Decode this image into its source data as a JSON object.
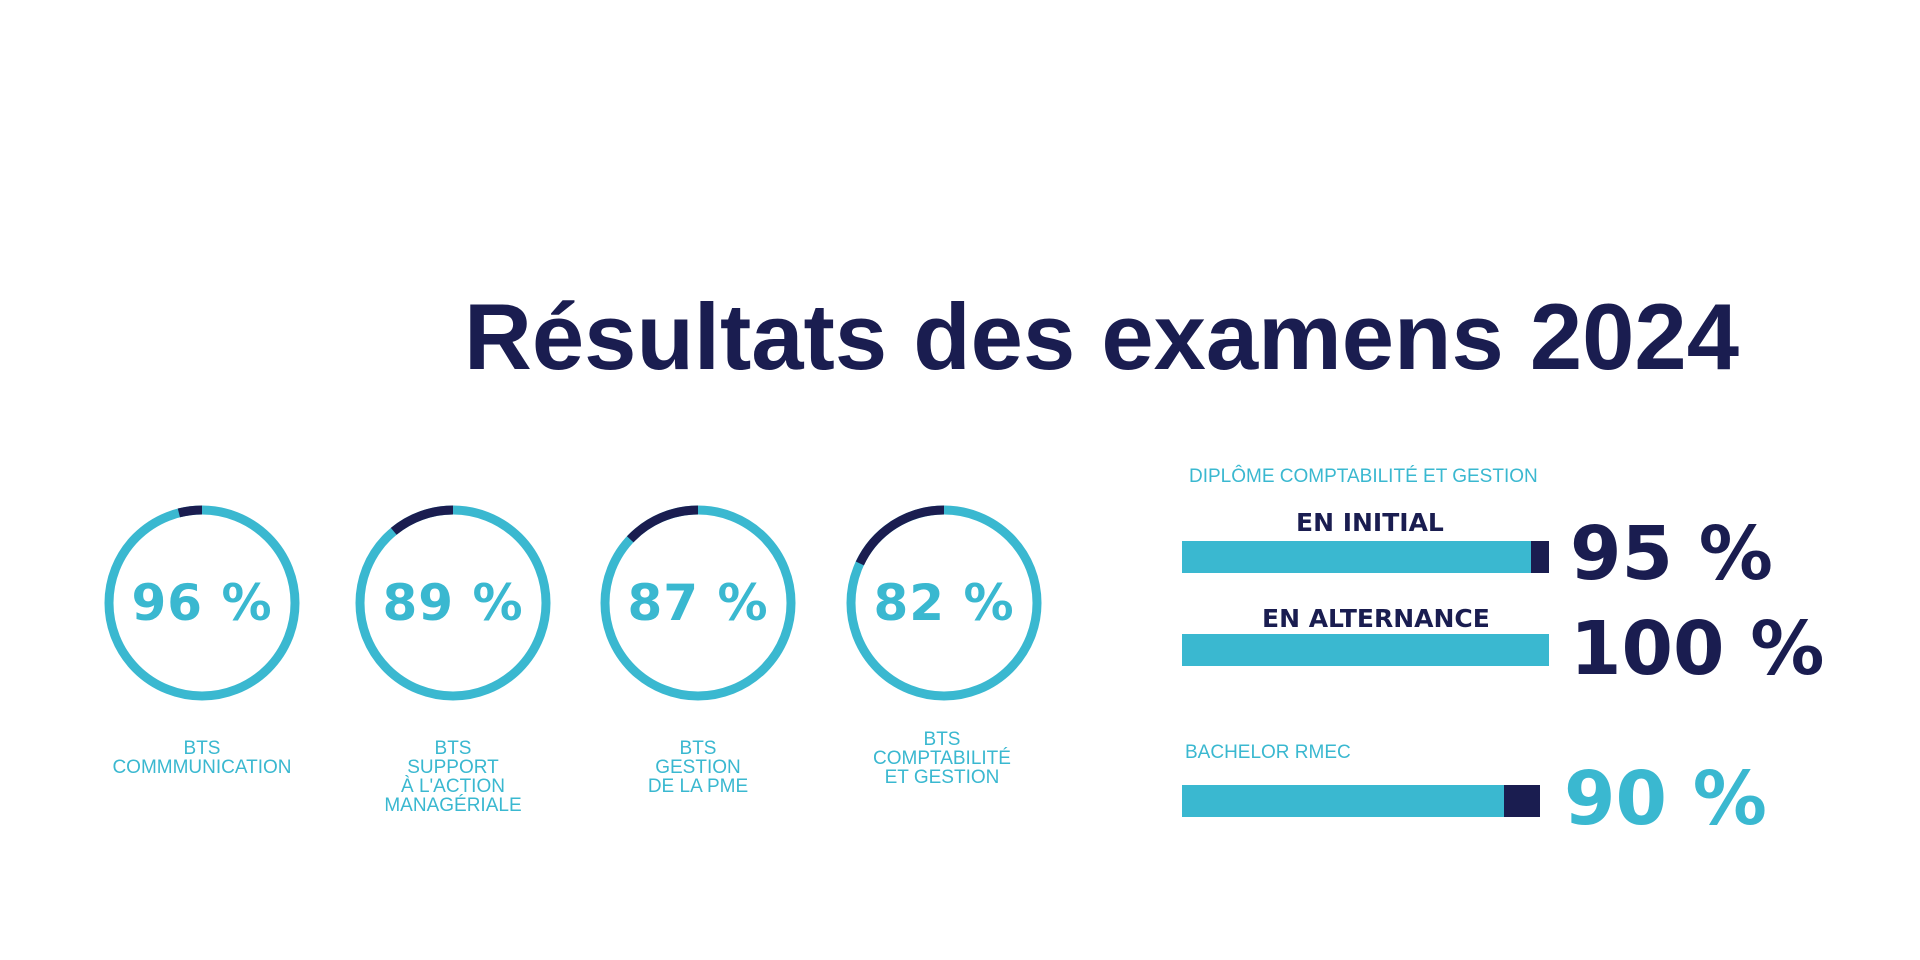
{
  "title": "Résultats des examens 2024",
  "colors": {
    "accent": "#3ab8d0",
    "navy": "#1a1d50",
    "background": "#ffffff"
  },
  "chart_data": [
    {
      "type": "pie",
      "series": [
        {
          "values": [
            96
          ],
          "value_label": "96 %",
          "label_lines": [
            "BTS",
            "COMMMUNICATION"
          ]
        },
        {
          "values": [
            89
          ],
          "value_label": "89 %",
          "label_lines": [
            "BTS",
            "SUPPORT",
            "À L'ACTION",
            "MANAGÉRIALE"
          ]
        },
        {
          "values": [
            87
          ],
          "value_label": "87 %",
          "label_lines": [
            "BTS",
            "GESTION",
            "DE LA PME"
          ]
        },
        {
          "values": [
            82
          ],
          "value_label": "82 %",
          "label_lines": [
            "BTS",
            "COMPTABILITÉ",
            "ET GESTION"
          ]
        }
      ]
    },
    {
      "type": "bar",
      "section_title": "DIPLÔME COMPTABILITÉ ET GESTION",
      "categories": [
        "EN INITIAL",
        "EN ALTERNANCE"
      ],
      "values": [
        95,
        100
      ],
      "value_labels": [
        "95 %",
        "100 %"
      ]
    },
    {
      "type": "bar",
      "section_title": "BACHELOR RMEC",
      "categories": [
        ""
      ],
      "values": [
        90
      ],
      "value_labels": [
        "90 %"
      ]
    }
  ]
}
